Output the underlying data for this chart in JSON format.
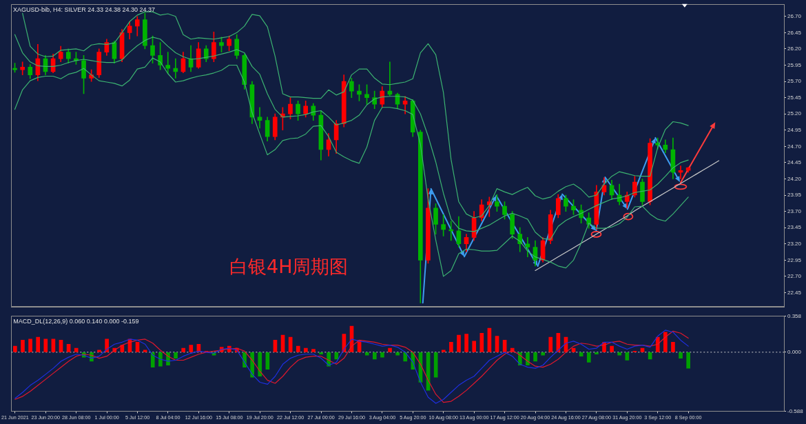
{
  "chart_data": [
    {
      "type": "candlestick",
      "title": "XAGUSD-bib, H4: SILVER 24.33 24.38 24.30 24.37",
      "annotations": [
        "白银4H周期图"
      ],
      "categories": [
        null,
        null,
        null,
        null,
        null,
        null,
        null,
        null,
        null,
        null,
        null,
        null,
        null,
        null,
        null,
        null,
        null,
        null,
        null,
        null,
        null,
        null,
        null,
        null,
        null,
        null,
        null,
        null,
        null,
        null,
        null,
        null,
        null,
        null,
        null,
        null,
        null,
        null,
        null,
        null,
        null,
        null,
        null,
        null,
        null,
        null,
        null,
        null,
        null,
        null,
        null,
        null,
        null,
        null,
        null,
        null,
        null,
        null,
        null,
        null,
        null,
        null,
        null,
        null,
        null,
        null,
        null,
        null,
        null,
        null,
        null,
        null,
        null,
        null,
        null,
        null,
        null,
        null,
        null,
        null,
        null,
        null,
        null,
        null,
        null,
        null,
        null,
        null,
        null,
        null,
        null,
        null,
        null,
        null,
        null,
        null,
        null,
        null,
        null,
        null,
        null
      ],
      "ylim": [
        22.23,
        26.88
      ],
      "yticks": [
        {
          "value": 26.7,
          "label": "26.70"
        },
        26.45,
        {
          "value": 26.2,
          "label": "26.20"
        },
        25.95,
        {
          "value": 25.7,
          "label": "25.70"
        },
        25.45,
        {
          "value": 25.2,
          "label": "25.20"
        },
        24.95,
        {
          "value": 24.7,
          "label": "24.70"
        },
        24.45,
        {
          "value": 24.2,
          "label": "24.20"
        },
        23.95,
        {
          "value": 23.7,
          "label": "23.70"
        },
        23.45,
        {
          "value": 23.2,
          "label": "23.20"
        },
        22.95,
        {
          "value": 22.7,
          "label": "22.70"
        },
        22.45
      ],
      "ohlc": [
        [
          25.9,
          25.98,
          25.84,
          25.88
        ],
        [
          25.88,
          26.0,
          25.8,
          25.92
        ],
        [
          25.92,
          25.96,
          25.74,
          25.8
        ],
        [
          25.8,
          26.27,
          25.71,
          26.05
        ],
        [
          26.05,
          26.1,
          25.8,
          25.85
        ],
        [
          25.85,
          26.12,
          25.83,
          26.05
        ],
        [
          26.05,
          26.24,
          26.0,
          26.15
        ],
        [
          26.15,
          26.2,
          25.98,
          26.05
        ],
        [
          26.05,
          26.15,
          25.96,
          26.02
        ],
        [
          26.02,
          26.1,
          25.51,
          25.75
        ],
        [
          25.75,
          25.88,
          25.7,
          25.8
        ],
        [
          25.8,
          26.2,
          25.76,
          26.15
        ],
        [
          26.15,
          26.35,
          26.1,
          26.3
        ],
        [
          26.3,
          26.32,
          25.98,
          26.05
        ],
        [
          26.05,
          26.5,
          26.0,
          26.45
        ],
        [
          26.45,
          26.62,
          26.35,
          26.55
        ],
        [
          26.55,
          26.7,
          26.4,
          26.65
        ],
        [
          26.65,
          26.75,
          26.2,
          26.25
        ],
        [
          26.25,
          26.4,
          25.98,
          26.1
        ],
        [
          26.1,
          26.3,
          25.88,
          25.95
        ],
        [
          25.95,
          26.15,
          25.82,
          25.9
        ],
        [
          25.9,
          26.05,
          25.75,
          25.85
        ],
        [
          25.85,
          26.15,
          25.83,
          26.05
        ],
        [
          26.05,
          26.25,
          25.85,
          25.92
        ],
        [
          25.92,
          26.3,
          25.9,
          26.2
        ],
        [
          26.2,
          26.25,
          26.0,
          26.05
        ],
        [
          26.05,
          26.46,
          26.0,
          26.3
        ],
        [
          26.3,
          26.38,
          26.15,
          26.25
        ],
        [
          26.25,
          26.4,
          26.17,
          26.35
        ],
        [
          26.35,
          26.42,
          26.05,
          26.1
        ],
        [
          26.1,
          26.12,
          25.58,
          25.65
        ],
        [
          25.65,
          25.7,
          25.05,
          25.15
        ],
        [
          25.15,
          25.3,
          24.98,
          25.1
        ],
        [
          25.1,
          25.15,
          24.78,
          24.85
        ],
        [
          24.85,
          25.2,
          24.8,
          25.15
        ],
        [
          25.15,
          25.3,
          24.95,
          25.2
        ],
        [
          25.2,
          25.45,
          25.12,
          25.35
        ],
        [
          25.35,
          25.4,
          25.1,
          25.2
        ],
        [
          25.2,
          25.4,
          25.15,
          25.32
        ],
        [
          25.32,
          25.36,
          25.1,
          25.18
        ],
        [
          25.18,
          25.25,
          24.49,
          24.65
        ],
        [
          24.65,
          24.9,
          24.55,
          24.8
        ],
        [
          24.8,
          25.1,
          24.59,
          25.05
        ],
        [
          25.05,
          25.8,
          25.0,
          25.7
        ],
        [
          25.7,
          25.75,
          25.45,
          25.55
        ],
        [
          25.55,
          25.65,
          25.4,
          25.5
        ],
        [
          25.5,
          25.65,
          25.35,
          25.45
        ],
        [
          25.45,
          25.55,
          25.28,
          25.35
        ],
        [
          25.35,
          25.62,
          25.3,
          25.55
        ],
        [
          25.55,
          26.0,
          25.48,
          25.5
        ],
        [
          25.5,
          25.52,
          25.28,
          25.35
        ],
        [
          25.35,
          25.47,
          25.2,
          25.4
        ],
        [
          25.4,
          25.42,
          24.85,
          24.92
        ],
        [
          24.92,
          24.95,
          22.29,
          22.95
        ],
        [
          22.95,
          24.05,
          22.9,
          23.75
        ],
        [
          23.75,
          23.82,
          23.35,
          23.5
        ],
        [
          23.5,
          23.65,
          23.32,
          23.42
        ],
        [
          23.42,
          23.55,
          23.25,
          23.4
        ],
        [
          23.4,
          23.62,
          23.15,
          23.2
        ],
        [
          23.2,
          23.35,
          23.08,
          23.3
        ],
        [
          23.3,
          23.7,
          23.25,
          23.6
        ],
        [
          23.6,
          23.88,
          23.55,
          23.8
        ],
        [
          23.8,
          23.92,
          23.62,
          23.85
        ],
        [
          23.85,
          23.96,
          23.7,
          23.78
        ],
        [
          23.78,
          23.85,
          23.58,
          23.65
        ],
        [
          23.65,
          23.7,
          23.28,
          23.35
        ],
        [
          23.35,
          23.45,
          23.08,
          23.2
        ],
        [
          23.2,
          23.3,
          23.0,
          23.15
        ],
        [
          23.15,
          23.25,
          22.86,
          22.95
        ],
        [
          22.95,
          23.3,
          22.92,
          23.25
        ],
        [
          23.25,
          23.72,
          23.2,
          23.65
        ],
        [
          23.65,
          23.96,
          23.6,
          23.9
        ],
        [
          23.9,
          23.95,
          23.7,
          23.78
        ],
        [
          23.78,
          23.88,
          23.65,
          23.72
        ],
        [
          23.72,
          23.8,
          23.52,
          23.6
        ],
        [
          23.6,
          23.68,
          23.44,
          23.5
        ],
        [
          23.5,
          24.1,
          23.42,
          24.0
        ],
        [
          24.0,
          24.22,
          23.95,
          24.1
        ],
        [
          24.1,
          24.18,
          23.88,
          23.95
        ],
        [
          23.95,
          24.12,
          23.8,
          23.85
        ],
        [
          23.85,
          24.0,
          23.75,
          23.95
        ],
        [
          23.95,
          24.24,
          23.92,
          24.15
        ],
        [
          24.15,
          24.2,
          23.8,
          23.85
        ],
        [
          23.85,
          24.82,
          23.8,
          24.75
        ],
        [
          24.75,
          24.83,
          24.66,
          24.72
        ],
        [
          24.72,
          24.8,
          24.6,
          24.65
        ],
        [
          24.65,
          24.83,
          24.2,
          24.3
        ],
        [
          24.3,
          24.4,
          24.2,
          24.33
        ],
        [
          24.33,
          24.38,
          24.3,
          24.37
        ],
        null,
        null,
        null,
        null,
        null,
        null,
        null,
        null,
        null,
        null,
        null,
        null
      ],
      "colors": [
        "#00b400",
        "#ff0000",
        "#00b400",
        "#ff0000",
        "#00b400",
        "#ff0000",
        "#ff0000",
        "#00b400",
        "#00b400",
        "#00b400",
        "#ff0000",
        "#ff0000",
        "#ff0000",
        "#00b400",
        "#ff0000",
        "#ff0000",
        "#ff0000",
        "#00b400",
        "#00b400",
        "#00b400",
        "#00b400",
        "#00b400",
        "#ff0000",
        "#00b400",
        "#ff0000",
        "#00b400",
        "#ff0000",
        "#00b400",
        "#ff0000",
        "#00b400",
        "#00b400",
        "#00b400",
        "#00b400",
        "#00b400",
        "#ff0000",
        "#ff0000",
        "#ff0000",
        "#00b400",
        "#ff0000",
        "#00b400",
        "#00b400",
        "#ff0000",
        "#ff0000",
        "#ff0000",
        "#00b400",
        "#00b400",
        "#00b400",
        "#00b400",
        "#ff0000",
        "#00b400",
        "#00b400",
        "#ff0000",
        "#00b400",
        "#00b400",
        "#ff0000",
        "#00b400",
        "#00b400",
        "#00b400",
        "#00b400",
        "#ff0000",
        "#ff0000",
        "#ff0000",
        "#ff0000",
        "#00b400",
        "#00b400",
        "#00b400",
        "#00b400",
        "#00b400",
        "#00b400",
        "#ff0000",
        "#ff0000",
        "#ff0000",
        "#00b400",
        "#00b400",
        "#00b400",
        "#00b400",
        "#ff0000",
        "#ff0000",
        "#00b400",
        "#00b400",
        "#ff0000",
        "#ff0000",
        "#00b400",
        "#ff0000",
        "#00b400",
        "#00b400",
        "#00b400",
        "#ff0000",
        "#ff0000",
        null,
        null,
        null,
        null,
        null,
        null,
        null,
        null,
        null,
        null,
        null,
        null
      ],
      "series": [
        {
          "type": "line",
          "color": "#3cb371",
          "values": [
            null,
            26.75,
            26.24,
            26.12,
            26.08,
            26.09,
            26.18,
            26.19,
            26.2,
            26.17,
            26.26,
            26.28,
            26.27,
            26.29,
            26.45,
            26.62,
            26.72,
            26.77,
            26.77,
            26.72,
            26.74,
            26.7,
            26.42,
            26.35,
            26.37,
            26.36,
            26.35,
            26.37,
            26.39,
            26.45,
            26.55,
            26.73,
            26.71,
            26.54,
            26.09,
            25.51,
            25.46,
            25.46,
            25.45,
            25.44,
            25.44,
            25.57,
            25.49,
            25.54,
            25.8,
            25.89,
            25.89,
            25.75,
            25.66,
            25.65,
            25.67,
            25.69,
            25.74,
            26.14,
            26.28,
            26.11,
            25.53,
            24.5,
            23.85,
            23.66,
            23.6,
            23.63,
            23.79,
            24.05,
            24.0,
            23.96,
            24.02,
            24.07,
            23.94,
            23.89,
            23.92,
            24.01,
            24.08,
            24.12,
            24.04,
            23.92,
            23.95,
            24.12,
            24.24,
            24.31,
            24.28,
            24.25,
            24.24,
            24.24,
            24.68,
            24.96,
            25.08,
            25.06,
            25.02,
            null,
            null,
            null,
            null,
            null,
            null,
            null,
            null,
            null,
            null,
            null,
            null
          ]
        },
        {
          "type": "line",
          "color": "#3cb371",
          "values": [
            26.42,
            26.14,
            26.0,
            25.94,
            25.93,
            25.93,
            25.95,
            25.99,
            26.02,
            26.04,
            26.02,
            26.0,
            25.99,
            25.99,
            26.03,
            26.15,
            26.25,
            26.33,
            26.38,
            26.35,
            26.24,
            26.14,
            26.08,
            26.04,
            26.05,
            26.07,
            26.09,
            26.12,
            26.15,
            26.19,
            26.14,
            25.93,
            25.81,
            25.51,
            25.27,
            25.15,
            25.16,
            25.17,
            25.19,
            25.23,
            25.25,
            25.15,
            25.03,
            25.06,
            25.1,
            25.18,
            25.34,
            25.43,
            25.46,
            25.47,
            25.47,
            25.46,
            25.41,
            25.2,
            24.86,
            24.46,
            23.98,
            23.58,
            23.44,
            23.4,
            23.39,
            23.44,
            23.49,
            23.56,
            23.63,
            23.67,
            23.63,
            23.58,
            23.38,
            23.28,
            23.27,
            23.47,
            23.56,
            23.62,
            23.67,
            23.73,
            23.79,
            23.84,
            23.89,
            23.91,
            23.94,
            23.99,
            24.01,
            24.03,
            24.12,
            24.24,
            24.37,
            24.45,
            24.49,
            null,
            null,
            null,
            null,
            null,
            null,
            null,
            null,
            null,
            null,
            null,
            null
          ]
        },
        {
          "type": "line",
          "color": "#3cb371",
          "values": [
            25.27,
            25.57,
            25.71,
            25.76,
            25.78,
            25.78,
            25.74,
            25.81,
            25.84,
            25.9,
            25.8,
            25.71,
            25.69,
            25.67,
            25.63,
            25.72,
            25.89,
            25.92,
            26.06,
            26.0,
            25.82,
            25.69,
            25.71,
            25.75,
            25.78,
            25.8,
            25.83,
            25.87,
            25.95,
            25.95,
            25.69,
            25.22,
            24.89,
            24.57,
            24.65,
            24.79,
            24.82,
            24.83,
            24.89,
            25.01,
            25.02,
            24.85,
            24.61,
            24.54,
            24.48,
            24.44,
            24.69,
            25.1,
            25.3,
            25.3,
            25.28,
            25.25,
            25.19,
            24.73,
            23.89,
            23.26,
            22.7,
            22.79,
            23.05,
            23.12,
            23.11,
            23.09,
            23.09,
            23.1,
            23.21,
            23.32,
            23.24,
            23.09,
            23.0,
            22.96,
            22.92,
            22.86,
            22.83,
            22.95,
            23.21,
            23.52,
            23.44,
            23.44,
            23.46,
            23.51,
            23.61,
            23.77,
            23.78,
            23.66,
            23.58,
            23.55,
            23.66,
            23.79,
            23.92,
            null,
            null,
            null,
            null,
            null,
            null,
            null,
            null,
            null,
            null,
            null,
            null
          ]
        },
        {
          "type": "line",
          "color": "#c8c8c8",
          "values": [
            null,
            null,
            null,
            null,
            null,
            null,
            null,
            null,
            null,
            null,
            null,
            null,
            null,
            null,
            null,
            null,
            null,
            null,
            null,
            null,
            null,
            null,
            null,
            null,
            null,
            null,
            null,
            null,
            null,
            null,
            null,
            null,
            null,
            null,
            null,
            null,
            null,
            null,
            null,
            null,
            null,
            null,
            null,
            null,
            null,
            null,
            null,
            null,
            null,
            null,
            null,
            null,
            null,
            null,
            null,
            null,
            null,
            null,
            null,
            null,
            null,
            null,
            null,
            null,
            null,
            null,
            null,
            null,
            22.79,
            22.86,
            22.93,
            23.0,
            23.07,
            23.14,
            23.21,
            23.28,
            23.35,
            23.42,
            23.49,
            23.56,
            23.63,
            23.71,
            23.78,
            23.85,
            23.92,
            23.99,
            24.06,
            24.13,
            24.2,
            24.27,
            24.34,
            24.41,
            24.48,
            null,
            null,
            null,
            null,
            null,
            null,
            null,
            null
          ]
        }
      ]
    },
    {
      "type": "bar",
      "title": "MACD_DL(12,26,9) 0.060 0.140 0.000 -0.159",
      "categories": [
        "21 Jun 2021",
        null,
        null,
        null,
        "23 Jun 20:00",
        null,
        null,
        null,
        "28 Jun 08:00",
        null,
        null,
        null,
        "1 Jul 00:00",
        null,
        null,
        null,
        "5 Jul 12:00",
        null,
        null,
        null,
        "8 Jul 04:00",
        null,
        null,
        null,
        "12 Jul 16:00",
        null,
        null,
        null,
        "15 Jul 08:00",
        null,
        null,
        null,
        "19 Jul 20:00",
        null,
        null,
        null,
        "22 Jul 12:00",
        null,
        null,
        null,
        "27 Jul 00:00",
        null,
        null,
        null,
        "29 Jul 16:00",
        null,
        null,
        null,
        "3 Aug 04:00",
        null,
        null,
        null,
        "5 Aug 20:00",
        null,
        null,
        null,
        "10 Aug 08:00",
        null,
        null,
        null,
        "13 Aug 00:00",
        null,
        null,
        null,
        "17 Aug 12:00",
        null,
        null,
        null,
        "20 Aug 04:00",
        null,
        null,
        null,
        "24 Aug 16:00",
        null,
        null,
        null,
        "27 Aug 08:00",
        null,
        null,
        null,
        "31 Aug 20:00",
        null,
        null,
        null,
        "3 Sep 12:00",
        null,
        null,
        null,
        "8 Sep 00:00",
        null,
        null,
        null,
        null,
        null,
        null,
        null,
        null,
        null,
        null,
        null,
        null
      ],
      "ylim": [
        -0.588,
        0.358
      ],
      "yticks": [
        0.358,
        {
          "value": 0,
          "label": "0.000"
        },
        -0.588
      ],
      "ref_lines": [
        {
          "axis": "y",
          "value": 0,
          "line_style": "dotted",
          "color": "#d0d0d0"
        }
      ],
      "series": [
        {
          "type": "bar",
          "values": [
            0.06,
            0.12,
            0.13,
            0.15,
            0.13,
            0.13,
            0.12,
            0.08,
            0.04,
            -0.05,
            -0.09,
            0.02,
            0.13,
            0.04,
            0.07,
            0.13,
            0.1,
            0.02,
            -0.15,
            -0.14,
            -0.13,
            -0.06,
            0.04,
            0.07,
            0.08,
            0.01,
            -0.03,
            0.05,
            0.06,
            0.04,
            -0.15,
            -0.25,
            -0.24,
            -0.17,
            0.12,
            0.17,
            0.15,
            0.06,
            0.04,
            0.03,
            -0.02,
            -0.14,
            -0.07,
            0.18,
            0.26,
            0.12,
            -0.03,
            -0.07,
            -0.05,
            0.04,
            -0.03,
            -0.09,
            -0.17,
            -0.3,
            -0.38,
            -0.25,
            0.02,
            0.1,
            0.17,
            0.18,
            0.11,
            0.19,
            0.24,
            0.16,
            0.12,
            0.04,
            -0.13,
            -0.13,
            -0.09,
            -0.03,
            0.15,
            0.19,
            0.15,
            0.04,
            -0.04,
            -0.1,
            -0.02,
            0.1,
            0.06,
            -0.03,
            -0.08,
            0.01,
            0.04,
            -0.07,
            0.15,
            0.2,
            0.1,
            -0.06,
            -0.16,
            null,
            null,
            null,
            null,
            null,
            null,
            null,
            null,
            null,
            null,
            null,
            null
          ],
          "colors": [
            "#ff0000",
            "#ff0000",
            "#ff0000",
            "#ff0000",
            "#ff0000",
            "#ff0000",
            "#ff0000",
            "#ff0000",
            "#ff0000",
            "#00a000",
            "#00a000",
            "#ff0000",
            "#ff0000",
            "#ff0000",
            "#ff0000",
            "#ff0000",
            "#ff0000",
            "#ff0000",
            "#00a000",
            "#00a000",
            "#00a000",
            "#00a000",
            "#ff0000",
            "#ff0000",
            "#ff0000",
            "#ff0000",
            "#00a000",
            "#ff0000",
            "#ff0000",
            "#ff0000",
            "#00a000",
            "#00a000",
            "#00a000",
            "#00a000",
            "#ff0000",
            "#ff0000",
            "#ff0000",
            "#ff0000",
            "#ff0000",
            "#ff0000",
            "#00a000",
            "#00a000",
            "#00a000",
            "#ff0000",
            "#ff0000",
            "#ff0000",
            "#00a000",
            "#00a000",
            "#00a000",
            "#ff0000",
            "#00a000",
            "#00a000",
            "#00a000",
            "#00a000",
            "#00a000",
            "#00a000",
            "#ff0000",
            "#ff0000",
            "#ff0000",
            "#ff0000",
            "#ff0000",
            "#ff0000",
            "#ff0000",
            "#ff0000",
            "#ff0000",
            "#ff0000",
            "#00a000",
            "#00a000",
            "#00a000",
            "#00a000",
            "#ff0000",
            "#ff0000",
            "#ff0000",
            "#ff0000",
            "#00a000",
            "#00a000",
            "#00a000",
            "#ff0000",
            "#ff0000",
            "#00a000",
            "#00a000",
            "#ff0000",
            "#ff0000",
            "#00a000",
            "#ff0000",
            "#ff0000",
            "#ff0000",
            "#00a000",
            "#00a000",
            null,
            null,
            null,
            null,
            null,
            null,
            null,
            null,
            null,
            null,
            null,
            null
          ]
        },
        {
          "type": "line",
          "color": "#1f2fe0",
          "values": [
            -0.46,
            -0.4,
            -0.33,
            -0.28,
            -0.22,
            -0.16,
            -0.09,
            -0.05,
            -0.02,
            -0.03,
            -0.06,
            -0.04,
            0.03,
            0.08,
            0.1,
            0.13,
            0.12,
            0.08,
            -0.03,
            -0.07,
            -0.09,
            -0.08,
            -0.04,
            -0.01,
            0.01,
            0.0,
            -0.01,
            0.03,
            0.04,
            0.02,
            -0.1,
            -0.22,
            -0.3,
            -0.32,
            -0.24,
            -0.12,
            -0.06,
            -0.03,
            -0.02,
            -0.02,
            -0.06,
            -0.13,
            -0.1,
            0.03,
            0.13,
            0.11,
            0.1,
            0.08,
            0.06,
            0.07,
            0.05,
            0.0,
            -0.1,
            -0.3,
            -0.45,
            -0.51,
            -0.47,
            -0.4,
            -0.33,
            -0.28,
            -0.24,
            -0.16,
            -0.08,
            -0.04,
            0.0,
            -0.04,
            -0.12,
            -0.15,
            -0.16,
            -0.13,
            -0.05,
            0.02,
            0.09,
            0.11,
            0.08,
            0.03,
            0.04,
            0.1,
            0.1,
            0.06,
            0.03,
            0.06,
            0.07,
            0.05,
            0.16,
            0.22,
            0.2,
            0.12,
            0.06,
            null,
            null,
            null,
            null,
            null,
            null,
            null,
            null,
            null,
            null,
            null,
            null
          ]
        },
        {
          "type": "line",
          "color": "#e0182d",
          "values": [
            -0.47,
            -0.44,
            -0.39,
            -0.33,
            -0.27,
            -0.21,
            -0.15,
            -0.09,
            -0.04,
            -0.02,
            -0.03,
            -0.06,
            -0.04,
            0.02,
            0.07,
            0.1,
            0.12,
            0.13,
            0.09,
            0.02,
            -0.04,
            -0.08,
            -0.08,
            -0.05,
            -0.02,
            0.0,
            0.01,
            0.02,
            0.03,
            0.04,
            0.01,
            -0.08,
            -0.19,
            -0.28,
            -0.31,
            -0.24,
            -0.15,
            -0.08,
            -0.05,
            -0.04,
            -0.04,
            -0.08,
            -0.12,
            -0.06,
            0.06,
            0.12,
            0.11,
            0.1,
            0.08,
            0.07,
            0.07,
            0.05,
            0.0,
            -0.12,
            -0.28,
            -0.42,
            -0.5,
            -0.49,
            -0.44,
            -0.38,
            -0.31,
            -0.24,
            -0.16,
            -0.08,
            -0.02,
            0.02,
            -0.03,
            -0.09,
            -0.14,
            -0.15,
            -0.12,
            -0.07,
            0.0,
            0.06,
            0.09,
            0.08,
            0.06,
            0.07,
            0.1,
            0.11,
            0.08,
            0.07,
            0.07,
            0.06,
            0.08,
            0.15,
            0.21,
            0.19,
            0.14,
            null,
            null,
            null,
            null,
            null,
            null,
            null,
            null,
            null,
            null,
            null,
            null
          ]
        }
      ]
    }
  ]
}
